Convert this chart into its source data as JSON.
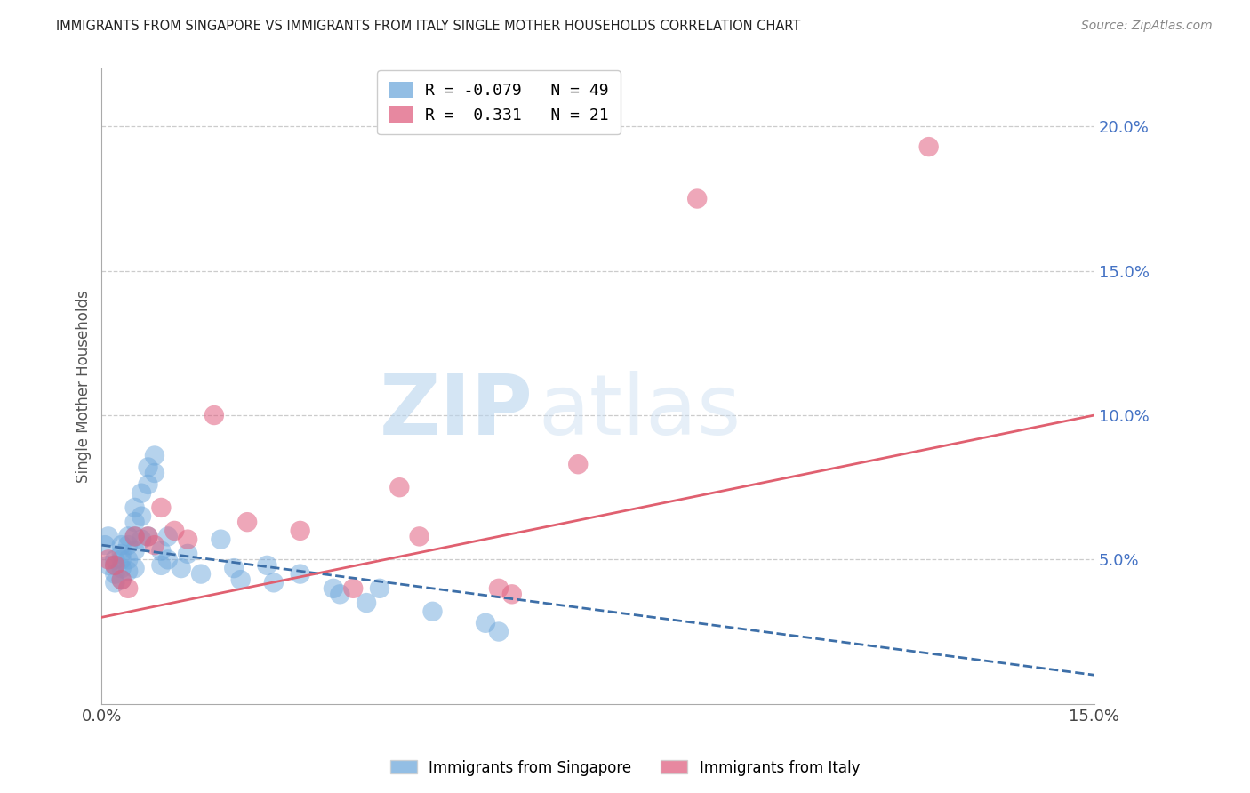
{
  "title": "IMMIGRANTS FROM SINGAPORE VS IMMIGRANTS FROM ITALY SINGLE MOTHER HOUSEHOLDS CORRELATION CHART",
  "source": "Source: ZipAtlas.com",
  "ylabel": "Single Mother Households",
  "xmin": 0.0,
  "xmax": 0.15,
  "ymin": 0.0,
  "ymax": 0.22,
  "yticks": [
    0.05,
    0.1,
    0.15,
    0.2
  ],
  "ytick_labels": [
    "5.0%",
    "10.0%",
    "15.0%",
    "20.0%"
  ],
  "xticks": [
    0.0,
    0.03,
    0.06,
    0.09,
    0.12,
    0.15
  ],
  "xtick_labels_show": [
    "0.0%",
    "",
    "",
    "",
    "",
    "15.0%"
  ],
  "singapore_color": "#6fa8dc",
  "italy_color": "#e06080",
  "singapore_R": -0.079,
  "singapore_N": 49,
  "italy_R": 0.331,
  "italy_N": 21,
  "singapore_line_color": "#3d6fa8",
  "italy_line_color": "#e06070",
  "watermark_zip": "ZIP",
  "watermark_atlas": "atlas",
  "singapore_points_x": [
    0.0005,
    0.001,
    0.001,
    0.002,
    0.002,
    0.002,
    0.002,
    0.003,
    0.003,
    0.003,
    0.003,
    0.003,
    0.004,
    0.004,
    0.004,
    0.004,
    0.005,
    0.005,
    0.005,
    0.005,
    0.005,
    0.006,
    0.006,
    0.006,
    0.007,
    0.007,
    0.007,
    0.008,
    0.008,
    0.009,
    0.009,
    0.01,
    0.01,
    0.012,
    0.013,
    0.015,
    0.018,
    0.02,
    0.021,
    0.025,
    0.026,
    0.03,
    0.035,
    0.036,
    0.04,
    0.042,
    0.05,
    0.058,
    0.06
  ],
  "singapore_points_y": [
    0.055,
    0.058,
    0.048,
    0.05,
    0.048,
    0.045,
    0.042,
    0.055,
    0.052,
    0.05,
    0.047,
    0.043,
    0.058,
    0.055,
    0.05,
    0.046,
    0.068,
    0.063,
    0.058,
    0.053,
    0.047,
    0.073,
    0.065,
    0.057,
    0.082,
    0.076,
    0.058,
    0.086,
    0.08,
    0.053,
    0.048,
    0.058,
    0.05,
    0.047,
    0.052,
    0.045,
    0.057,
    0.047,
    0.043,
    0.048,
    0.042,
    0.045,
    0.04,
    0.038,
    0.035,
    0.04,
    0.032,
    0.028,
    0.025
  ],
  "italy_points_x": [
    0.001,
    0.002,
    0.003,
    0.004,
    0.005,
    0.007,
    0.008,
    0.009,
    0.011,
    0.013,
    0.017,
    0.022,
    0.03,
    0.038,
    0.045,
    0.048,
    0.06,
    0.062,
    0.072,
    0.09,
    0.125
  ],
  "italy_points_y": [
    0.05,
    0.048,
    0.043,
    0.04,
    0.058,
    0.058,
    0.055,
    0.068,
    0.06,
    0.057,
    0.1,
    0.063,
    0.06,
    0.04,
    0.075,
    0.058,
    0.04,
    0.038,
    0.083,
    0.175,
    0.193
  ]
}
